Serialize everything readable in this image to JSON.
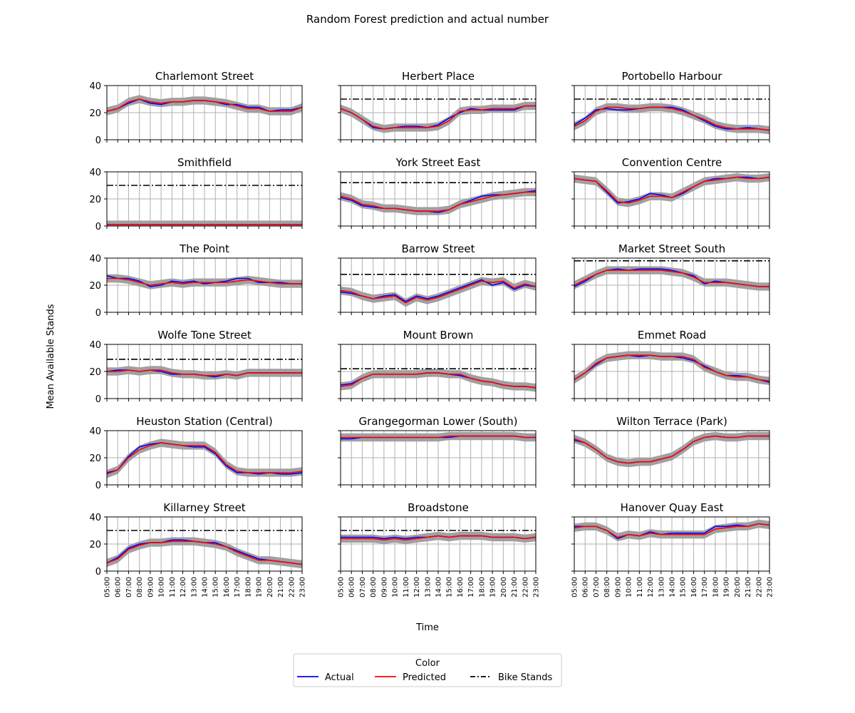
{
  "figure": {
    "title": "Random Forest  prediction and actual number",
    "xlabel": "Time",
    "ylabel": "Mean Available Stands"
  },
  "legend": {
    "title": "Color",
    "entries": [
      {
        "label": "Actual",
        "color": "#0000ff",
        "style": "solid"
      },
      {
        "label": "Predicted",
        "color": "#ff0000",
        "style": "solid"
      },
      {
        "label": "Bike Stands",
        "color": "#000000",
        "style": "dashdot"
      }
    ]
  },
  "colors": {
    "actual": "#0000ff",
    "predicted": "#ff0000",
    "band": "#a0a0a0",
    "stands": "#000000",
    "grid": "#b0b0b0"
  },
  "chart_data": {
    "type": "line",
    "x": [
      "05:00",
      "06:00",
      "07:00",
      "08:00",
      "09:00",
      "10:00",
      "11:00",
      "12:00",
      "13:00",
      "14:00",
      "15:00",
      "16:00",
      "17:00",
      "18:00",
      "19:00",
      "20:00",
      "21:00",
      "22:00",
      "23:00"
    ],
    "ylim": [
      0,
      40
    ],
    "yticks": [
      0,
      20,
      40
    ],
    "grid": true,
    "legend_position": "bottom-center",
    "band_halfwidth": 3,
    "panels": [
      {
        "title": "Charlemont Street",
        "bike_stands": null,
        "actual": [
          21,
          23,
          27,
          30,
          27,
          26,
          28,
          28,
          29,
          29,
          28,
          26,
          26,
          24,
          24,
          21,
          22,
          22,
          24
        ],
        "predicted": [
          21,
          23,
          28,
          30,
          28,
          27,
          28,
          28,
          29,
          29,
          28,
          27,
          25,
          23,
          23,
          21,
          21,
          21,
          24
        ]
      },
      {
        "title": "Herbert Place",
        "bike_stands": 30,
        "actual": [
          23,
          20,
          15,
          9,
          8,
          9,
          10,
          10,
          9,
          11,
          16,
          20,
          23,
          22,
          22,
          22,
          22,
          25,
          25
        ],
        "predicted": [
          23,
          20,
          15,
          10,
          8,
          9,
          9,
          9,
          9,
          10,
          14,
          21,
          22,
          22,
          23,
          23,
          23,
          25,
          25
        ]
      },
      {
        "title": "Portobello Harbour",
        "bike_stands": 30,
        "actual": [
          11,
          16,
          22,
          23,
          22,
          22,
          23,
          24,
          24,
          24,
          22,
          18,
          14,
          10,
          8,
          8,
          9,
          8,
          7
        ],
        "predicted": [
          10,
          14,
          21,
          24,
          24,
          23,
          23,
          24,
          24,
          23,
          21,
          18,
          15,
          11,
          9,
          8,
          8,
          8,
          7
        ]
      },
      {
        "title": "Smithfield",
        "bike_stands": 30,
        "actual": [
          1,
          1,
          1,
          1,
          1,
          1,
          1,
          1,
          1,
          1,
          1,
          1,
          1,
          1,
          1,
          1,
          1,
          1,
          1
        ],
        "predicted": [
          1,
          1,
          1,
          1,
          1,
          1,
          1,
          1,
          1,
          1,
          1,
          1,
          1,
          1,
          1,
          1,
          1,
          1,
          1
        ]
      },
      {
        "title": "York Street East",
        "bike_stands": 32,
        "actual": [
          21,
          19,
          15,
          14,
          13,
          13,
          12,
          11,
          11,
          10,
          12,
          16,
          19,
          22,
          23,
          23,
          24,
          25,
          26
        ],
        "predicted": [
          22,
          20,
          16,
          15,
          13,
          13,
          12,
          11,
          11,
          11,
          12,
          16,
          18,
          20,
          22,
          23,
          24,
          25,
          25
        ]
      },
      {
        "title": "Convention Centre",
        "bike_stands": null,
        "actual": [
          35,
          34,
          33,
          25,
          17,
          18,
          20,
          24,
          23,
          21,
          24,
          29,
          33,
          35,
          35,
          36,
          36,
          35,
          36
        ],
        "predicted": [
          35,
          34,
          33,
          26,
          18,
          17,
          19,
          22,
          22,
          21,
          25,
          29,
          33,
          34,
          35,
          36,
          35,
          35,
          36
        ]
      },
      {
        "title": "The Point",
        "bike_stands": null,
        "actual": [
          27,
          25,
          25,
          23,
          19,
          20,
          23,
          22,
          23,
          21,
          22,
          23,
          25,
          25,
          22,
          22,
          22,
          21,
          21
        ],
        "predicted": [
          25,
          25,
          24,
          22,
          20,
          21,
          22,
          21,
          22,
          22,
          22,
          22,
          23,
          24,
          23,
          22,
          21,
          21,
          21
        ]
      },
      {
        "title": "Barrow Street",
        "bike_stands": 28,
        "actual": [
          15,
          14,
          12,
          10,
          12,
          13,
          8,
          12,
          10,
          12,
          15,
          18,
          21,
          24,
          20,
          22,
          17,
          20,
          19
        ],
        "predicted": [
          16,
          15,
          12,
          10,
          11,
          12,
          7,
          11,
          9,
          11,
          14,
          17,
          20,
          23,
          22,
          23,
          18,
          21,
          19
        ]
      },
      {
        "title": "Market Street South",
        "bike_stands": 38,
        "actual": [
          19,
          23,
          28,
          31,
          32,
          31,
          32,
          32,
          32,
          31,
          29,
          27,
          21,
          23,
          22,
          21,
          20,
          19,
          19
        ],
        "predicted": [
          20,
          24,
          28,
          31,
          31,
          31,
          31,
          31,
          31,
          30,
          29,
          26,
          22,
          22,
          22,
          21,
          20,
          19,
          19
        ]
      },
      {
        "title": "Wolfe Tone Street",
        "bike_stands": 29,
        "actual": [
          20,
          21,
          21,
          20,
          21,
          20,
          18,
          18,
          18,
          17,
          16,
          18,
          17,
          19,
          19,
          19,
          19,
          19,
          19
        ],
        "predicted": [
          20,
          20,
          21,
          20,
          21,
          21,
          19,
          18,
          18,
          17,
          17,
          18,
          17,
          19,
          19,
          19,
          19,
          19,
          19
        ]
      },
      {
        "title": "Mount Brown",
        "bike_stands": 22,
        "actual": [
          10,
          11,
          15,
          18,
          18,
          18,
          18,
          18,
          19,
          19,
          18,
          17,
          15,
          13,
          12,
          10,
          9,
          9,
          8
        ],
        "predicted": [
          9,
          10,
          15,
          18,
          18,
          18,
          18,
          18,
          19,
          19,
          18,
          18,
          15,
          13,
          12,
          10,
          9,
          9,
          8
        ]
      },
      {
        "title": "Emmet Road",
        "bike_stands": null,
        "actual": [
          14,
          19,
          25,
          30,
          31,
          32,
          31,
          32,
          31,
          31,
          30,
          28,
          24,
          20,
          17,
          17,
          16,
          14,
          12
        ],
        "predicted": [
          14,
          19,
          26,
          30,
          31,
          32,
          32,
          32,
          31,
          31,
          31,
          29,
          23,
          20,
          17,
          16,
          16,
          14,
          13
        ]
      },
      {
        "title": "Heuston Station (Central)",
        "bike_stands": null,
        "actual": [
          9,
          11,
          21,
          28,
          30,
          31,
          30,
          29,
          28,
          28,
          23,
          14,
          9,
          9,
          8,
          9,
          8,
          8,
          9
        ],
        "predicted": [
          8,
          11,
          20,
          26,
          29,
          31,
          30,
          29,
          29,
          29,
          24,
          15,
          10,
          9,
          9,
          9,
          9,
          9,
          10
        ]
      },
      {
        "title": "Grangegorman Lower (South)",
        "bike_stands": null,
        "actual": [
          34,
          34,
          35,
          35,
          35,
          35,
          35,
          35,
          35,
          35,
          35,
          36,
          36,
          36,
          36,
          36,
          36,
          35,
          35
        ],
        "predicted": [
          35,
          35,
          35,
          35,
          35,
          35,
          35,
          35,
          35,
          35,
          36,
          36,
          36,
          36,
          36,
          36,
          36,
          35,
          35
        ]
      },
      {
        "title": "Wilton Terrace (Park)",
        "bike_stands": null,
        "actual": [
          33,
          31,
          26,
          20,
          17,
          16,
          17,
          17,
          19,
          21,
          26,
          32,
          35,
          36,
          35,
          35,
          36,
          36,
          36
        ],
        "predicted": [
          34,
          31,
          26,
          20,
          17,
          16,
          17,
          17,
          19,
          21,
          26,
          32,
          35,
          36,
          35,
          35,
          36,
          36,
          36
        ]
      },
      {
        "title": "Killarney Street",
        "bike_stands": 30,
        "actual": [
          6,
          10,
          17,
          20,
          21,
          21,
          23,
          23,
          22,
          21,
          21,
          18,
          15,
          12,
          9,
          8,
          7,
          6,
          5
        ],
        "predicted": [
          6,
          9,
          16,
          19,
          21,
          21,
          22,
          22,
          22,
          21,
          20,
          18,
          14,
          11,
          8,
          8,
          7,
          6,
          5
        ]
      },
      {
        "title": "Broadstone",
        "bike_stands": 30,
        "actual": [
          25,
          25,
          25,
          25,
          24,
          25,
          24,
          25,
          25,
          26,
          25,
          26,
          26,
          26,
          25,
          25,
          25,
          24,
          25
        ],
        "predicted": [
          24,
          24,
          24,
          24,
          23,
          24,
          23,
          24,
          25,
          26,
          25,
          26,
          26,
          26,
          25,
          25,
          25,
          24,
          25
        ]
      },
      {
        "title": "Hanover Quay East",
        "bike_stands": null,
        "actual": [
          33,
          33,
          33,
          30,
          24,
          27,
          26,
          29,
          27,
          28,
          28,
          28,
          28,
          33,
          33,
          34,
          33,
          35,
          34
        ],
        "predicted": [
          32,
          33,
          33,
          30,
          25,
          27,
          26,
          28,
          27,
          27,
          27,
          27,
          27,
          31,
          32,
          33,
          33,
          35,
          34
        ]
      }
    ]
  }
}
